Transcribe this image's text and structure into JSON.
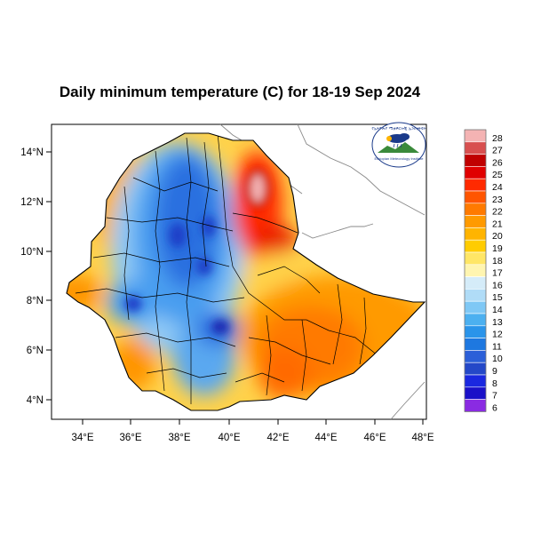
{
  "title": "Daily minimum temperature (C) for 18-19 Sep 2024",
  "logo": {
    "arc_text": "የኢትዮጵያ ሚቲዎሮሎጂ ኢንስቲትዩት",
    "sub_text": "Ethiopian Meteorology Institute"
  },
  "axes": {
    "x_ticks": [
      "34°E",
      "36°E",
      "38°E",
      "40°E",
      "42°E",
      "44°E",
      "46°E",
      "48°E"
    ],
    "y_ticks": [
      "14°N",
      "12°N",
      "10°N",
      "8°N",
      "6°N",
      "4°N"
    ]
  },
  "colorbar": {
    "levels": [
      "28",
      "27",
      "26",
      "25",
      "24",
      "23",
      "22",
      "21",
      "20",
      "19",
      "18",
      "17",
      "16",
      "15",
      "14",
      "13",
      "12",
      "11",
      "10",
      "9",
      "8",
      "7",
      "6"
    ],
    "colors": [
      "#f4b3b3",
      "#d84f4f",
      "#c00000",
      "#e00000",
      "#ff2a00",
      "#ff5500",
      "#ff7a00",
      "#ff9a00",
      "#ffb400",
      "#ffcc00",
      "#ffe666",
      "#fff5b0",
      "#d5ecf9",
      "#b0dcf7",
      "#7fc8f5",
      "#4cb0f0",
      "#2a94ea",
      "#1e78e0",
      "#2b5fd8",
      "#2448c8",
      "#1a28e0",
      "#1a10c8",
      "#8a2be2"
    ]
  },
  "colors": {
    "cold": "#2a6fe0",
    "cool": "#8fc9f5",
    "mild": "#ffd24a",
    "warm": "#ff9500",
    "hot": "#e81a00"
  }
}
